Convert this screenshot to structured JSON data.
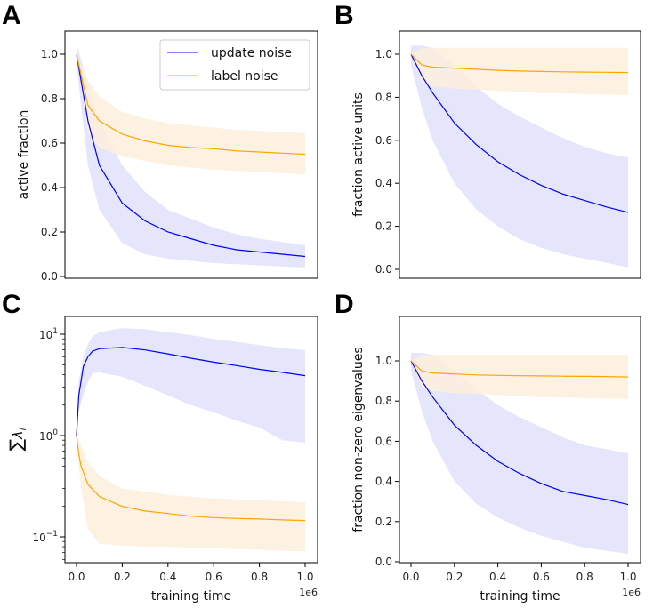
{
  "chart_data": [
    {
      "panel": "A",
      "type": "line",
      "xlabel": "",
      "ylabel": "active fraction",
      "xlim": [
        0,
        1
      ],
      "ylim": [
        0,
        1.1
      ],
      "yscale": "linear",
      "yticks": [
        "0.0",
        "0.2",
        "0.4",
        "0.6",
        "0.8",
        "1.0"
      ],
      "xticks": [],
      "legend": {
        "placement": "top-right",
        "entries": [
          "update noise",
          "label noise"
        ]
      },
      "series": [
        {
          "name": "update noise",
          "color": "#0000ff",
          "band_color": "#e0e0fb",
          "x": [
            0,
            0.05,
            0.1,
            0.2,
            0.3,
            0.4,
            0.5,
            0.6,
            0.7,
            0.8,
            0.9,
            1.0
          ],
          "mean": [
            1.0,
            0.7,
            0.5,
            0.33,
            0.25,
            0.2,
            0.17,
            0.14,
            0.12,
            0.11,
            0.1,
            0.09
          ],
          "upper": [
            1.05,
            0.86,
            0.7,
            0.5,
            0.38,
            0.3,
            0.26,
            0.22,
            0.19,
            0.17,
            0.155,
            0.14
          ],
          "lower": [
            0.95,
            0.5,
            0.3,
            0.15,
            0.1,
            0.08,
            0.07,
            0.06,
            0.055,
            0.05,
            0.045,
            0.04
          ]
        },
        {
          "name": "label noise",
          "color": "#ffa500",
          "band_color": "#fdf0dc",
          "x": [
            0,
            0.05,
            0.1,
            0.2,
            0.3,
            0.4,
            0.5,
            0.6,
            0.7,
            0.8,
            0.9,
            1.0
          ],
          "mean": [
            1.0,
            0.77,
            0.7,
            0.64,
            0.61,
            0.59,
            0.58,
            0.575,
            0.565,
            0.56,
            0.555,
            0.55
          ],
          "upper": [
            1.0,
            0.88,
            0.81,
            0.74,
            0.71,
            0.69,
            0.68,
            0.67,
            0.66,
            0.655,
            0.65,
            0.645
          ],
          "lower": [
            1.0,
            0.65,
            0.58,
            0.54,
            0.52,
            0.5,
            0.49,
            0.48,
            0.475,
            0.47,
            0.465,
            0.46
          ]
        }
      ]
    },
    {
      "panel": "B",
      "type": "line",
      "xlabel": "",
      "ylabel": "fraction active units",
      "xlim": [
        0,
        1
      ],
      "ylim": [
        0,
        1.08
      ],
      "yscale": "linear",
      "yticks": [
        "0.0",
        "0.2",
        "0.4",
        "0.6",
        "0.8",
        "1.0"
      ],
      "xticks": [],
      "series": [
        {
          "name": "update noise",
          "color": "#0000ff",
          "band_color": "#e0e0fb",
          "x": [
            0,
            0.05,
            0.1,
            0.2,
            0.3,
            0.4,
            0.5,
            0.6,
            0.7,
            0.8,
            0.9,
            1.0
          ],
          "mean": [
            1.0,
            0.9,
            0.82,
            0.68,
            0.58,
            0.5,
            0.44,
            0.39,
            0.35,
            0.32,
            0.29,
            0.265
          ],
          "upper": [
            1.04,
            1.04,
            1.03,
            0.95,
            0.85,
            0.77,
            0.71,
            0.66,
            0.61,
            0.57,
            0.54,
            0.52
          ],
          "lower": [
            0.95,
            0.75,
            0.6,
            0.4,
            0.28,
            0.2,
            0.14,
            0.1,
            0.07,
            0.05,
            0.03,
            0.01
          ]
        },
        {
          "name": "label noise",
          "color": "#ffa500",
          "band_color": "#fdf0dc",
          "x": [
            0,
            0.05,
            0.1,
            0.2,
            0.3,
            0.4,
            0.5,
            0.6,
            0.7,
            0.8,
            0.9,
            1.0
          ],
          "mean": [
            1.0,
            0.95,
            0.94,
            0.935,
            0.93,
            0.925,
            0.922,
            0.92,
            0.918,
            0.917,
            0.916,
            0.915
          ],
          "upper": [
            1.0,
            1.03,
            1.03,
            1.03,
            1.03,
            1.03,
            1.03,
            1.03,
            1.03,
            1.03,
            1.03,
            1.03
          ],
          "lower": [
            1.0,
            0.87,
            0.85,
            0.84,
            0.835,
            0.83,
            0.825,
            0.82,
            0.818,
            0.815,
            0.812,
            0.81
          ]
        }
      ]
    },
    {
      "panel": "C",
      "type": "line",
      "xlabel": "training time",
      "ylabel": "Σλi",
      "ylabel_main": "∑",
      "ylabel_sym": "λ",
      "ylabel_sub": "i",
      "xlim": [
        0,
        1
      ],
      "x_offset_label": "1e6",
      "ylim": [
        0.055,
        16
      ],
      "yscale": "log",
      "yticks": [
        {
          "value": 10,
          "base": "10",
          "exp": "1"
        },
        {
          "value": 1,
          "base": "10",
          "exp": "0"
        },
        {
          "value": 0.1,
          "base": "10",
          "exp": "−1"
        }
      ],
      "xticks": [
        "0.0",
        "0.2",
        "0.4",
        "0.6",
        "0.8",
        "1.0"
      ],
      "series": [
        {
          "name": "update noise",
          "color": "#0000ff",
          "band_color": "#e0e0fb",
          "x": [
            0,
            0.01,
            0.03,
            0.05,
            0.07,
            0.1,
            0.2,
            0.3,
            0.4,
            0.5,
            0.6,
            0.7,
            0.8,
            0.9,
            1.0
          ],
          "mean": [
            1.0,
            2.5,
            4.8,
            6.0,
            6.8,
            7.2,
            7.4,
            7.0,
            6.4,
            5.8,
            5.3,
            4.9,
            4.5,
            4.2,
            3.9
          ],
          "upper": [
            1.0,
            3.5,
            6.0,
            8.0,
            9.5,
            10.5,
            11.5,
            11.2,
            10.5,
            9.8,
            9.0,
            8.4,
            7.8,
            7.3,
            7.0
          ],
          "lower": [
            1.0,
            1.8,
            2.5,
            3.4,
            4.1,
            4.2,
            3.8,
            3.1,
            2.5,
            2.0,
            1.7,
            1.4,
            1.2,
            0.9,
            0.85
          ]
        },
        {
          "name": "label noise",
          "color": "#ffa500",
          "band_color": "#fdf0dc",
          "x": [
            0,
            0.01,
            0.02,
            0.05,
            0.1,
            0.2,
            0.3,
            0.4,
            0.5,
            0.6,
            0.7,
            0.8,
            0.9,
            1.0
          ],
          "mean": [
            1.0,
            0.65,
            0.5,
            0.33,
            0.25,
            0.2,
            0.18,
            0.17,
            0.16,
            0.155,
            0.152,
            0.15,
            0.147,
            0.145
          ],
          "upper": [
            1.0,
            0.9,
            0.8,
            0.55,
            0.4,
            0.3,
            0.28,
            0.26,
            0.25,
            0.24,
            0.235,
            0.23,
            0.225,
            0.22
          ],
          "lower": [
            1.0,
            0.5,
            0.3,
            0.12,
            0.085,
            0.082,
            0.08,
            0.08,
            0.078,
            0.077,
            0.076,
            0.075,
            0.073,
            0.072
          ]
        }
      ]
    },
    {
      "panel": "D",
      "type": "line",
      "xlabel": "training time",
      "ylabel": "fraction non-zero eigenvalues",
      "xlim": [
        0,
        1
      ],
      "x_offset_label": "1e6",
      "ylim": [
        0,
        1.1
      ],
      "yscale": "linear",
      "yticks": [
        "0.0",
        "0.2",
        "0.4",
        "0.6",
        "0.8",
        "1.0"
      ],
      "xticks": [
        "0.0",
        "0.2",
        "0.4",
        "0.6",
        "0.8",
        "1.0"
      ],
      "series": [
        {
          "name": "update noise",
          "color": "#0000ff",
          "band_color": "#e0e0fb",
          "x": [
            0,
            0.05,
            0.1,
            0.2,
            0.3,
            0.4,
            0.5,
            0.6,
            0.7,
            0.8,
            0.9,
            1.0
          ],
          "mean": [
            1.0,
            0.9,
            0.82,
            0.68,
            0.58,
            0.5,
            0.44,
            0.39,
            0.35,
            0.33,
            0.31,
            0.285
          ],
          "upper": [
            1.04,
            1.04,
            1.03,
            0.95,
            0.86,
            0.78,
            0.72,
            0.67,
            0.62,
            0.58,
            0.56,
            0.54
          ],
          "lower": [
            0.95,
            0.75,
            0.6,
            0.4,
            0.29,
            0.22,
            0.17,
            0.13,
            0.1,
            0.07,
            0.055,
            0.04
          ]
        },
        {
          "name": "label noise",
          "color": "#ffa500",
          "band_color": "#fdf0dc",
          "x": [
            0,
            0.05,
            0.1,
            0.2,
            0.3,
            0.4,
            0.5,
            0.6,
            0.7,
            0.8,
            0.9,
            1.0
          ],
          "mean": [
            1.0,
            0.95,
            0.94,
            0.935,
            0.93,
            0.928,
            0.926,
            0.925,
            0.924,
            0.923,
            0.922,
            0.92
          ],
          "upper": [
            1.0,
            1.03,
            1.03,
            1.03,
            1.03,
            1.03,
            1.03,
            1.03,
            1.03,
            1.03,
            1.03,
            1.03
          ],
          "lower": [
            1.0,
            0.87,
            0.85,
            0.84,
            0.835,
            0.83,
            0.825,
            0.82,
            0.818,
            0.815,
            0.812,
            0.81
          ]
        }
      ]
    }
  ],
  "panel_letters": [
    "A",
    "B",
    "C",
    "D"
  ],
  "legend": {
    "update": "update noise",
    "label": "label noise"
  }
}
